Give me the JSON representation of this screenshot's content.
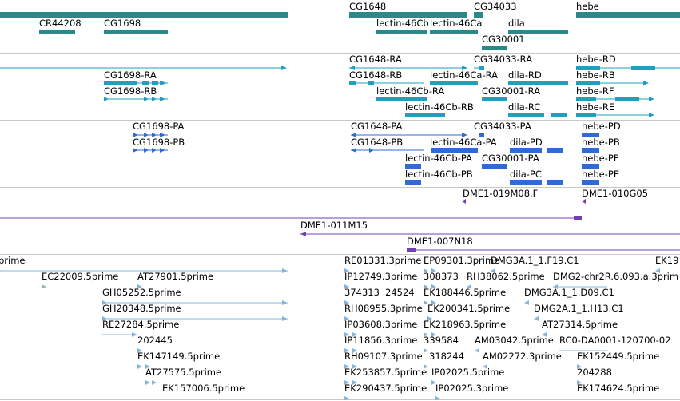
{
  "colors": {
    "gene": "#2a8a8a",
    "mrna": "#1ea0bf",
    "protein": "#2f6bd4",
    "bac": "#7040b0",
    "est": "#84b6dc",
    "divider": "#c8c8c8"
  },
  "tracks": {
    "gene": {
      "labels": [
        {
          "id": "cr44208",
          "text": "CR44208"
        },
        {
          "id": "cg1698",
          "text": "CG1698"
        },
        {
          "id": "cg1648",
          "text": "CG1648"
        },
        {
          "id": "cg34033",
          "text": "CG34033"
        },
        {
          "id": "hebe",
          "text": "hebe"
        },
        {
          "id": "lectin46cb",
          "text": "lectin-46Cb"
        },
        {
          "id": "lectin46ca",
          "text": "lectin-46Ca"
        },
        {
          "id": "dila",
          "text": "dila"
        },
        {
          "id": "cg30001",
          "text": "CG30001"
        }
      ]
    },
    "mrna": {
      "labels": [
        {
          "id": "cg1648-ra",
          "text": "CG1648-RA"
        },
        {
          "id": "cg34033-ra",
          "text": "CG34033-RA"
        },
        {
          "id": "hebe-rd",
          "text": "hebe-RD"
        },
        {
          "id": "cg1698-ra",
          "text": "CG1698-RA"
        },
        {
          "id": "cg1648-rb",
          "text": "CG1648-RB"
        },
        {
          "id": "lectin46ca-ra",
          "text": "lectin-46Ca-RA"
        },
        {
          "id": "dila-rd",
          "text": "dila-RD"
        },
        {
          "id": "hebe-rb",
          "text": "hebe-RB"
        },
        {
          "id": "cg1698-rb",
          "text": "CG1698-RB"
        },
        {
          "id": "lectin46cb-ra",
          "text": "lectin-46Cb-RA"
        },
        {
          "id": "cg30001-ra",
          "text": "CG30001-RA"
        },
        {
          "id": "hebe-rf",
          "text": "hebe-RF"
        },
        {
          "id": "lectin46cb-rb",
          "text": "lectin-46Cb-RB"
        },
        {
          "id": "dila-rc",
          "text": "dila-RC"
        },
        {
          "id": "hebe-re",
          "text": "hebe-RE"
        }
      ]
    },
    "protein": {
      "labels": [
        {
          "id": "cg1698-pa",
          "text": "CG1698-PA"
        },
        {
          "id": "cg1648-pa",
          "text": "CG1648-PA"
        },
        {
          "id": "cg34033-pa",
          "text": "CG34033-PA"
        },
        {
          "id": "hebe-pd",
          "text": "hebe-PD"
        },
        {
          "id": "cg1698-pb",
          "text": "CG1698-PB"
        },
        {
          "id": "cg1648-pb",
          "text": "CG1648-PB"
        },
        {
          "id": "lectin46ca-pa",
          "text": "lectin-46Ca-PA"
        },
        {
          "id": "dila-pd",
          "text": "dila-PD"
        },
        {
          "id": "hebe-pb",
          "text": "hebe-PB"
        },
        {
          "id": "lectin46cb-pa",
          "text": "lectin-46Cb-PA"
        },
        {
          "id": "cg30001-pa",
          "text": "CG30001-PA"
        },
        {
          "id": "hebe-pf",
          "text": "hebe-PF"
        },
        {
          "id": "lectin46cb-pb",
          "text": "lectin-46Cb-PB"
        },
        {
          "id": "dila-pc",
          "text": "dila-PC"
        },
        {
          "id": "hebe-pe",
          "text": "hebe-PE"
        }
      ]
    },
    "bac": {
      "labels": [
        {
          "id": "dme1-019m08",
          "text": "DME1-019M08.F"
        },
        {
          "id": "dme1-010g05",
          "text": "DME1-010G05"
        },
        {
          "id": "dme1-011m15",
          "text": "DME1-011M15"
        },
        {
          "id": "dme1-007n18",
          "text": "DME1-007N18"
        }
      ]
    },
    "est": {
      "labels": [
        {
          "id": "e0",
          "text": "prime"
        },
        {
          "id": "e1",
          "text": "RE01331.3prime"
        },
        {
          "id": "e2",
          "text": "EP09301.3prime"
        },
        {
          "id": "e3",
          "text": "DMG3A.1_1.F19.C1"
        },
        {
          "id": "e4",
          "text": "EK19"
        },
        {
          "id": "e5",
          "text": "EC22009.5prime"
        },
        {
          "id": "e6",
          "text": "AT27901.5prime"
        },
        {
          "id": "e7",
          "text": "IP12749.3prime"
        },
        {
          "id": "e8",
          "text": "308373"
        },
        {
          "id": "e9",
          "text": "RH38062.5prime"
        },
        {
          "id": "e10",
          "text": "DMG2-chr2R.6.093.a.3prim"
        },
        {
          "id": "e11",
          "text": "GH05252.5prime"
        },
        {
          "id": "e12",
          "text": "374313"
        },
        {
          "id": "e13",
          "text": "24524"
        },
        {
          "id": "e14",
          "text": "EK188446.5prime"
        },
        {
          "id": "e15",
          "text": "DMG3A.1_1.D09.C1"
        },
        {
          "id": "e16",
          "text": "GH20348.5prime"
        },
        {
          "id": "e17",
          "text": "RH08955.3prime"
        },
        {
          "id": "e18",
          "text": "EK200341.5prime"
        },
        {
          "id": "e19",
          "text": "DMG2A.1_1.H13.C1"
        },
        {
          "id": "e20",
          "text": "RE27284.5prime"
        },
        {
          "id": "e21",
          "text": "IP03608.3prime"
        },
        {
          "id": "e22",
          "text": "EK218963.5prime"
        },
        {
          "id": "e23",
          "text": "AT27314.5prime"
        },
        {
          "id": "e24",
          "text": "202445"
        },
        {
          "id": "e25",
          "text": "IP11856.3prime"
        },
        {
          "id": "e26",
          "text": "339584"
        },
        {
          "id": "e27",
          "text": "AM03042.5prime"
        },
        {
          "id": "e28",
          "text": "RC0-DA0001-120700-02"
        },
        {
          "id": "e29",
          "text": "EK147149.5prime"
        },
        {
          "id": "e30",
          "text": "RH09107.3prime"
        },
        {
          "id": "e31",
          "text": "318244"
        },
        {
          "id": "e32",
          "text": "AM02272.3prime"
        },
        {
          "id": "e33",
          "text": "EK152449.5prime"
        },
        {
          "id": "e34",
          "text": "AT27575.5prime"
        },
        {
          "id": "e35",
          "text": "EK253857.5prime"
        },
        {
          "id": "e36",
          "text": "IP02025.5prime"
        },
        {
          "id": "e37",
          "text": "204288"
        },
        {
          "id": "e38",
          "text": "EK157006.5prime"
        },
        {
          "id": "e39",
          "text": "EK290437.5prime"
        },
        {
          "id": "e40",
          "text": "IP02025.3prime"
        },
        {
          "id": "e41",
          "text": "EK174624.5prime"
        }
      ]
    }
  }
}
